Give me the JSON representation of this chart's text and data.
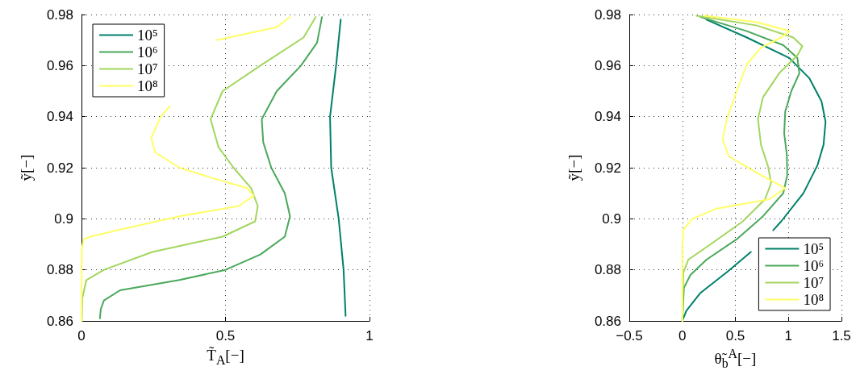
{
  "chart_data": [
    {
      "type": "line",
      "xlabel": "T̃$_{A}$[−]",
      "ylabel": "ỹ[−]",
      "xlim": [
        0,
        1
      ],
      "ylim": [
        0.86,
        0.98
      ],
      "xticks": [
        0,
        0.5,
        1
      ],
      "yticks": [
        0.86,
        0.88,
        0.9,
        0.92,
        0.94,
        0.96,
        0.98
      ],
      "grid": true,
      "legend": "top left",
      "marker": "none",
      "line_style": "solid",
      "series": [
        {
          "name": "10⁵",
          "color": "#00806a",
          "x": [
            0.9,
            0.884,
            0.863,
            0.867,
            0.893,
            0.91,
            0.917
          ],
          "values": [
            0.978,
            0.96,
            0.94,
            0.92,
            0.9,
            0.88,
            0.862
          ]
        },
        {
          "name": "10⁶",
          "color": "#4aa85a",
          "x": [
            0.835,
            0.818,
            0.762,
            0.678,
            0.626,
            0.631,
            0.659,
            0.706,
            0.724,
            0.706,
            0.621,
            0.5,
            0.34,
            0.134,
            0.078,
            0.067,
            0.064
          ],
          "values": [
            0.979,
            0.969,
            0.96,
            0.95,
            0.939,
            0.93,
            0.92,
            0.91,
            0.901,
            0.893,
            0.886,
            0.88,
            0.876,
            0.872,
            0.868,
            0.8646,
            0.861
          ]
        },
        {
          "name": "10⁷",
          "color": "#a2d65e",
          "x": [
            0.813,
            0.771,
            0.621,
            0.49,
            0.448,
            0.476,
            0.528,
            0.589,
            0.612,
            0.603,
            0.49,
            0.246,
            0.078,
            0.017,
            0.003,
            0.001
          ],
          "values": [
            0.979,
            0.971,
            0.96,
            0.95,
            0.939,
            0.928,
            0.92,
            0.912,
            0.905,
            0.899,
            0.893,
            0.887,
            0.88,
            0.876,
            0.869,
            0.86
          ]
        },
        {
          "name": "10⁸",
          "color": "#ffff66",
          "x": [
            0.723,
            0.678,
            0.47,
            null,
            0.307,
            0.275,
            0.242,
            0.256,
            0.34,
            0.453,
            0.575,
            0.598,
            0.546,
            0.34,
            0.143,
            0.031,
            0.007,
            0.001,
            0
          ],
          "values": [
            0.979,
            0.975,
            0.97,
            null,
            0.944,
            0.94,
            0.9316,
            0.926,
            0.92,
            0.916,
            0.912,
            0.909,
            0.905,
            0.901,
            0.896,
            0.893,
            0.892,
            0.888,
            0.86
          ]
        }
      ]
    },
    {
      "type": "line",
      "xlabel": "θ̃$_{b}$$^{A}$[−]",
      "ylabel": "ỹ[−]",
      "xlim": [
        -0.5,
        1.5
      ],
      "ylim": [
        0.86,
        0.98
      ],
      "xticks": [
        {
          "value": -0.5,
          "label": "−0.5"
        },
        0,
        0.5,
        1,
        1.5
      ],
      "yticks": [
        0.86,
        0.88,
        0.9,
        0.92,
        0.94,
        0.96,
        0.98
      ],
      "grid": true,
      "legend": "bottom right",
      "marker": "none",
      "line_style": "solid",
      "series": [
        {
          "name": "10⁵",
          "color": "#00806a",
          "x": [
            0.228,
            0.608,
            1.008,
            1.198,
            1.312,
            1.35,
            1.331,
            1.274,
            1.141,
            0.932,
            0.856,
            null,
            0.646,
            0.418,
            0.171,
            0.038,
            0.004
          ],
          "values": [
            0.978,
            0.971,
            0.963,
            0.955,
            0.946,
            0.938,
            0.929,
            0.921,
            0.91,
            0.899,
            0.8955,
            null,
            0.887,
            0.879,
            0.871,
            0.864,
            0.8605
          ]
        },
        {
          "name": "10⁶",
          "color": "#4aa85a",
          "x": [
            0.171,
            0.608,
            0.951,
            1.084,
            1.103,
            1.027,
            0.97,
            0.96,
            0.985,
            0.989,
            0.951,
            0.76,
            0.513,
            0.228,
            0.076,
            0.015,
            0
          ],
          "values": [
            0.979,
            0.9735,
            0.968,
            0.963,
            0.957,
            0.95,
            0.942,
            0.9335,
            0.925,
            0.917,
            0.91,
            0.901,
            0.892,
            0.884,
            0.878,
            0.873,
            0.86
          ]
        },
        {
          "name": "10⁷",
          "color": "#a2d65e",
          "x": [
            0.133,
            0.703,
            1.046,
            1.131,
            1.084,
            0.913,
            0.76,
            0.713,
            0.741,
            0.808,
            0.837,
            0.779,
            0.57,
            0.266,
            0.057,
            0.01,
            0
          ],
          "values": [
            0.9795,
            0.9757,
            0.971,
            0.9676,
            0.964,
            0.957,
            0.9476,
            0.939,
            0.929,
            0.9205,
            0.914,
            0.9076,
            0.899,
            0.89,
            0.884,
            0.879,
            0.86
          ]
        },
        {
          "name": "10⁸",
          "color": "#ffff66",
          "x": [
            0.209,
            0.703,
            1.008,
            0.932,
            0.741,
            0.608,
            0.513,
            0.418,
            0.38,
            0.437,
            0.703,
            0.97,
            0.818,
            0.323,
            0.095,
            0.01,
            0,
            0
          ],
          "values": [
            0.9795,
            0.977,
            0.9735,
            0.971,
            0.967,
            0.9605,
            0.95,
            0.939,
            0.931,
            0.9245,
            0.918,
            0.912,
            0.9076,
            0.904,
            0.9,
            0.8957,
            0.89,
            0.86
          ]
        }
      ]
    }
  ]
}
